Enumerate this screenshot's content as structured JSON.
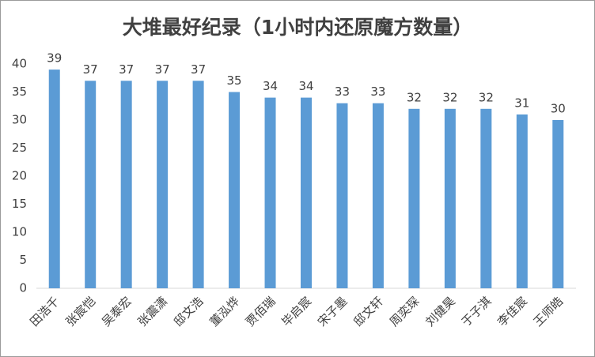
{
  "chart_data": {
    "type": "bar",
    "title": "大堆最好纪录（1小时内还原魔方数量）",
    "categories": [
      "田浩千",
      "张宸恺",
      "吴泰宏",
      "张震潇",
      "邸文浩",
      "董泓烨",
      "贾佰瑞",
      "毕启宸",
      "宋子墨",
      "邸文轩",
      "周奕琛",
      "刘健昊",
      "于子淇",
      "李佳宸",
      "王师皓"
    ],
    "values": [
      39,
      37,
      37,
      37,
      37,
      35,
      34,
      34,
      33,
      33,
      32,
      32,
      32,
      31,
      30
    ],
    "color": "#5b9bd5",
    "ylim": [
      0,
      40
    ],
    "yticks": [
      0,
      5,
      10,
      15,
      20,
      25,
      30,
      35,
      40
    ],
    "grid": false
  }
}
